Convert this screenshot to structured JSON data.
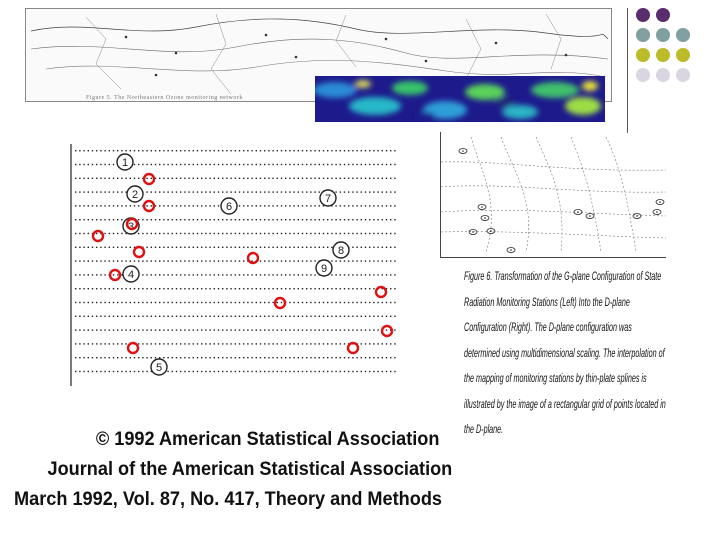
{
  "map": {
    "caption": "Figure 5. The Northeastern Ozone monitoring network"
  },
  "swatches": {
    "colors": [
      "#5a2e6e",
      "#5a2e6e",
      "#7f9fa0",
      "#bcbb2a",
      "#7f9fa0",
      "#bcbb2a",
      "#bcbb2a",
      "#d9d6e2",
      "#d9d6e2"
    ]
  },
  "scatter": {
    "station_labels": [
      "1",
      "2",
      "3",
      "4",
      "5",
      "6",
      "7",
      "8",
      "9"
    ]
  },
  "figure_caption": {
    "text": "Figure 6. Transformation of the G-plane Configuration of State Radiation Monitoring Stations (Left) Into the D-plane Configuration (Right). The D-plane configuration was determined using multidimensional scaling. The interpolation of the mapping of monitoring stations by thin-plate splines is illustrated by the image of a rectangular grid of points located in the D-plane."
  },
  "credit": {
    "line1": "© 1992 American Statistical Association",
    "line2": "Journal of the American Statistical Association",
    "line3": "March 1992, Vol. 87, No. 417, Theory and Methods"
  }
}
